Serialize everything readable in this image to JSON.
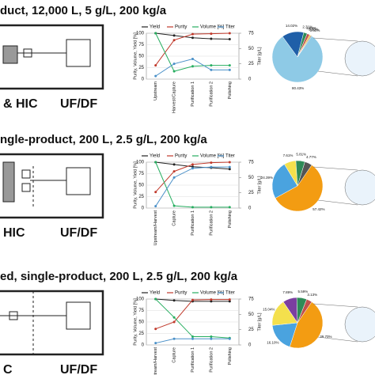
{
  "rows": [
    {
      "title": "duct, 12,000 L, 5 g/L, 200 kg/a",
      "labels": [
        "& HIC",
        "UF/DF"
      ]
    },
    {
      "title": "ngle-product, 200 L, 2.5 g/L, 200 kg/a",
      "labels": [
        "HIC",
        "UF/DF"
      ]
    },
    {
      "title": "ed, single-product, 200 L, 2.5 g/L, 200 kg/a",
      "labels": [
        "C",
        "UF/DF"
      ]
    }
  ],
  "chart_data": [
    {
      "type": "line",
      "ylabel": "Purity, Volume, Yield [%]",
      "y2label": "Titer [g/L]",
      "categories": [
        "Upstream",
        "Harvest/Capture",
        "Purification 1",
        "Purification 2",
        "Polishing"
      ],
      "ylim": [
        0,
        100
      ],
      "yticks": [
        0,
        25,
        50,
        75,
        100
      ],
      "y2lim": [
        0,
        75
      ],
      "y2ticks": [
        0,
        25,
        50,
        75
      ],
      "grid": true,
      "legend": "top",
      "series": [
        {
          "name": "Yield",
          "color": "#222222",
          "values": [
            100,
            95,
            90,
            88,
            87
          ]
        },
        {
          "name": "Purity",
          "color": "#c0392b",
          "values": [
            30,
            85,
            98,
            99,
            100
          ]
        },
        {
          "name": "Volume [%]",
          "color": "#27ae60",
          "values": [
            100,
            17,
            28,
            30,
            30
          ]
        },
        {
          "name": "Titer",
          "color": "#4a90c8",
          "axis": "y2",
          "values": [
            5,
            25,
            33,
            15,
            15
          ]
        }
      ]
    },
    {
      "type": "pie",
      "values": [
        80.43,
        14.02,
        2.31,
        1.69,
        0.95,
        0.6
      ],
      "value_labels": [
        "80.43%",
        "14.02%",
        "2.31%",
        "1.69%",
        "0.95%",
        "0.60%"
      ],
      "colors": [
        "#8ecae6",
        "#1f5fa8",
        "#2e8b57",
        "#c0504d",
        "#f2c12e",
        "#7f7f7f"
      ]
    },
    {
      "type": "line",
      "ylabel": "Purity, Volume, Yield [%]",
      "y2label": "Titer [g/L]",
      "categories": [
        "Upstream/Harvest",
        "Capture",
        "Purification 1",
        "Purification 2",
        "Polishing"
      ],
      "ylim": [
        0,
        100
      ],
      "yticks": [
        0,
        25,
        50,
        75,
        100
      ],
      "y2lim": [
        0,
        75
      ],
      "y2ticks": [
        0,
        25,
        50,
        75
      ],
      "grid": true,
      "legend": "top",
      "series": [
        {
          "name": "Yield",
          "color": "#222222",
          "values": [
            100,
            95,
            90,
            88,
            85
          ]
        },
        {
          "name": "Purity",
          "color": "#c0392b",
          "values": [
            35,
            80,
            95,
            99,
            100
          ]
        },
        {
          "name": "Volume [%]",
          "color": "#27ae60",
          "values": [
            100,
            5,
            2,
            2,
            2
          ]
        },
        {
          "name": "Titer",
          "color": "#4a90c8",
          "axis": "y2",
          "values": [
            3,
            50,
            65,
            67,
            67
          ]
        }
      ]
    },
    {
      "type": "pie",
      "values": [
        57.42,
        24.39,
        7.61,
        5.81,
        4.77
      ],
      "value_labels": [
        "57.42%",
        "24.39%",
        "7.61%",
        "5.81%",
        "4.77%"
      ],
      "colors": [
        "#f39c12",
        "#4aa3df",
        "#f4e04d",
        "#2e8b57",
        "#555555"
      ]
    },
    {
      "type": "line",
      "ylabel": "Purity, Volume, Yield [%]",
      "y2label": "Titer [g/L]",
      "categories": [
        "Upstream/Harvest",
        "Capture",
        "Purification 1",
        "Purification 2",
        "Polishing"
      ],
      "ylim": [
        0,
        100
      ],
      "yticks": [
        0,
        25,
        50,
        75,
        100
      ],
      "y2lim": [
        0,
        75
      ],
      "y2ticks": [
        0,
        25,
        50,
        75
      ],
      "grid": true,
      "legend": "top",
      "series": [
        {
          "name": "Yield",
          "color": "#222222",
          "values": [
            100,
            97,
            95,
            95,
            95
          ]
        },
        {
          "name": "Purity",
          "color": "#c0392b",
          "values": [
            35,
            50,
            98,
            99,
            99
          ]
        },
        {
          "name": "Volume [%]",
          "color": "#27ae60",
          "values": [
            100,
            60,
            18,
            18,
            15
          ]
        },
        {
          "name": "Titer",
          "color": "#4a90c8",
          "axis": "y2",
          "values": [
            3,
            10,
            10,
            10,
            10
          ]
        }
      ]
    },
    {
      "type": "pie",
      "values": [
        39.7,
        16.1,
        15.04,
        7.89,
        5.59,
        3.13
      ],
      "value_labels": [
        "39.70%",
        "16.10%",
        "15.04%",
        "7.89%",
        "5.59%",
        "3.13%"
      ],
      "colors": [
        "#f39c12",
        "#4aa3df",
        "#f4e04d",
        "#7b3fa0",
        "#2e8b57",
        "#c0504d"
      ]
    }
  ]
}
